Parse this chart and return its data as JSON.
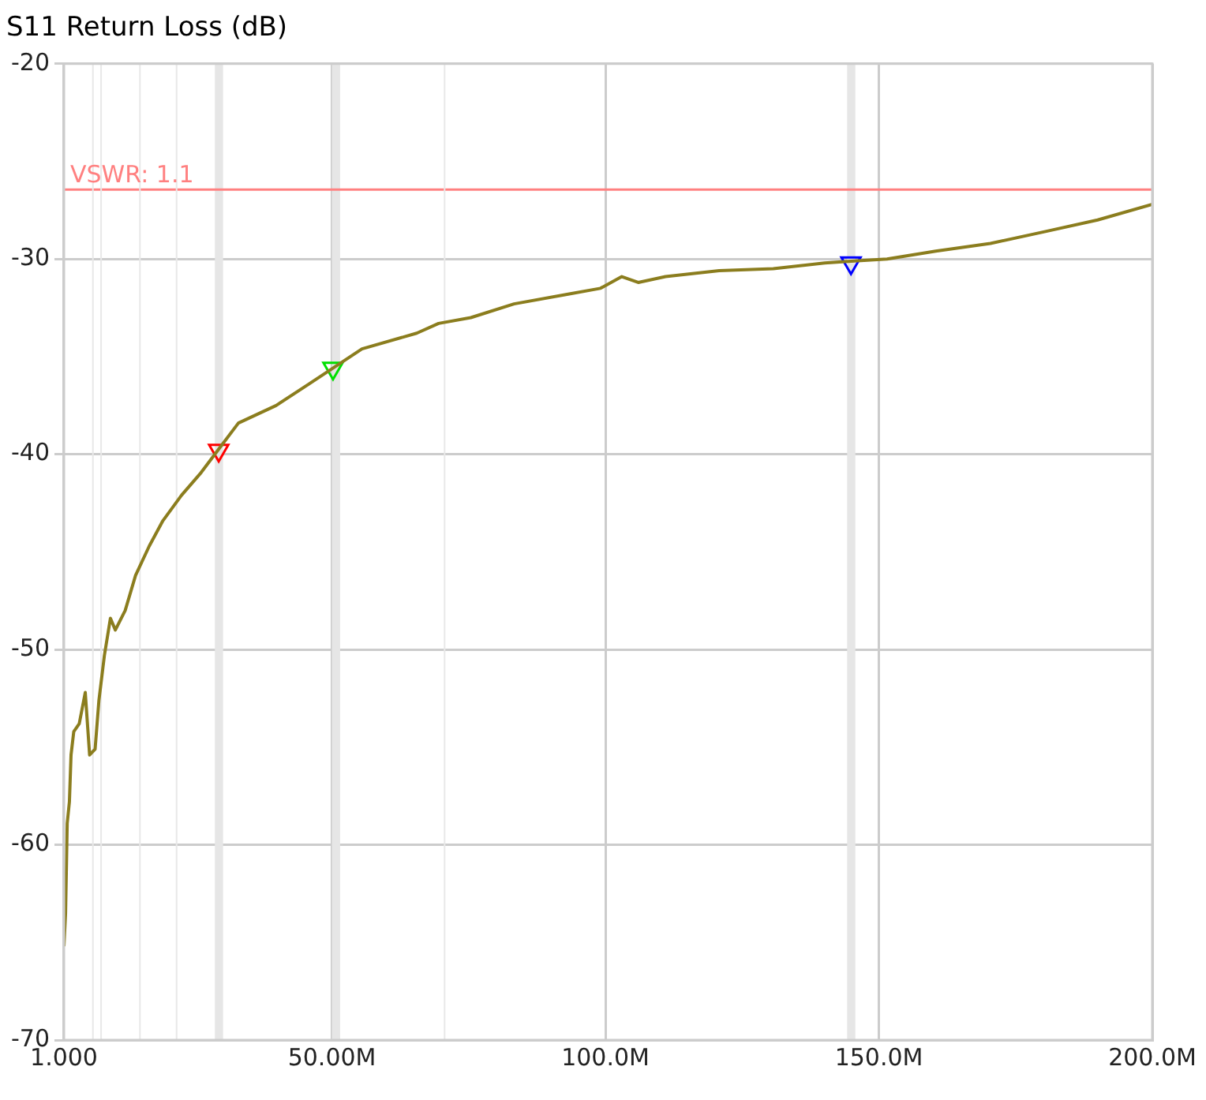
{
  "chart_data": {
    "type": "line",
    "title": "S11 Return Loss (dB)",
    "series": [
      {
        "type": "line",
        "color": "#8b7d1e",
        "marker": "none",
        "x": [
          1.0,
          1.3,
          1.6,
          2.0,
          2.3,
          2.8,
          3.8,
          4.9,
          5.7,
          6.7,
          7.4,
          8.4,
          9.5,
          10.4,
          12.2,
          14.1,
          16.6,
          19.1,
          22.5,
          25.9,
          29.4,
          32.9,
          39.8,
          45.8,
          51.2,
          55.5,
          65.5,
          69.5,
          75.4,
          83.3,
          93.2,
          99.1,
          103,
          106,
          111,
          120.8,
          130.7,
          140.1,
          145.5,
          151.5,
          160.4,
          170.4,
          180.3,
          190,
          200
        ],
        "values": [
          -65.2,
          -63.5,
          -58.9,
          -57.8,
          -55.4,
          -54.2,
          -53.8,
          -52.2,
          -55.4,
          -55.1,
          -52.6,
          -50.3,
          -48.4,
          -49.0,
          -48.0,
          -46.2,
          -44.7,
          -43.4,
          -42.1,
          -41.0,
          -39.7,
          -38.4,
          -37.5,
          -36.4,
          -35.4,
          -34.6,
          -33.8,
          -33.3,
          -33.0,
          -32.3,
          -31.8,
          -31.5,
          -30.9,
          -31.2,
          -30.9,
          -30.6,
          -30.5,
          -30.2,
          -30.1,
          -30.0,
          -29.6,
          -29.2,
          -28.6,
          -28.0,
          -27.2
        ]
      },
      {
        "type": "scatter",
        "color": "#ff0000",
        "marker": "triangle",
        "x": [
          29.3
        ],
        "values": [
          -39.8
        ]
      },
      {
        "type": "scatter",
        "color": "#00e000",
        "marker": "triangle",
        "x": [
          50.2
        ],
        "values": [
          -35.6
        ]
      },
      {
        "type": "scatter",
        "color": "#0000ff",
        "marker": "triangle",
        "x": [
          144.9
        ],
        "values": [
          -30.2
        ]
      }
    ],
    "xlim": [
      1,
      200
    ],
    "xticks": [
      {
        "value": 1,
        "label": "1.000"
      },
      {
        "value": 50,
        "label": "50.00M"
      },
      {
        "value": 100,
        "label": "100.0M"
      },
      {
        "value": 150,
        "label": "150.0M"
      },
      {
        "value": 200,
        "label": "200.0M"
      }
    ],
    "ylim": [
      -70,
      -20
    ],
    "yticks": [
      -70,
      -60,
      -50,
      -40,
      -30,
      -20
    ],
    "ref_lines": [
      {
        "axis": "y",
        "value": -26.44,
        "color": "#ff8080"
      },
      {
        "axis": "x",
        "value": 6.3,
        "color": "#e8e8e8"
      },
      {
        "axis": "x",
        "value": 7.8,
        "color": "#e8e8e8"
      },
      {
        "axis": "x",
        "value": 14.9,
        "color": "#e8e8e8"
      },
      {
        "axis": "x",
        "value": 21.6,
        "color": "#e8e8e8"
      },
      {
        "axis": "x",
        "value": 70.6,
        "color": "#e8e8e8"
      }
    ],
    "bands": [
      {
        "axis": "x",
        "from": 28.6,
        "to": 30.1,
        "color": "#e6e6e6"
      },
      {
        "axis": "x",
        "from": 50.0,
        "to": 51.5,
        "color": "#e6e6e6"
      },
      {
        "axis": "x",
        "from": 144.2,
        "to": 145.7,
        "color": "#e6e6e6"
      }
    ],
    "annotations": [
      "VSWR: 1.1"
    ],
    "grid": true,
    "legend": false
  }
}
